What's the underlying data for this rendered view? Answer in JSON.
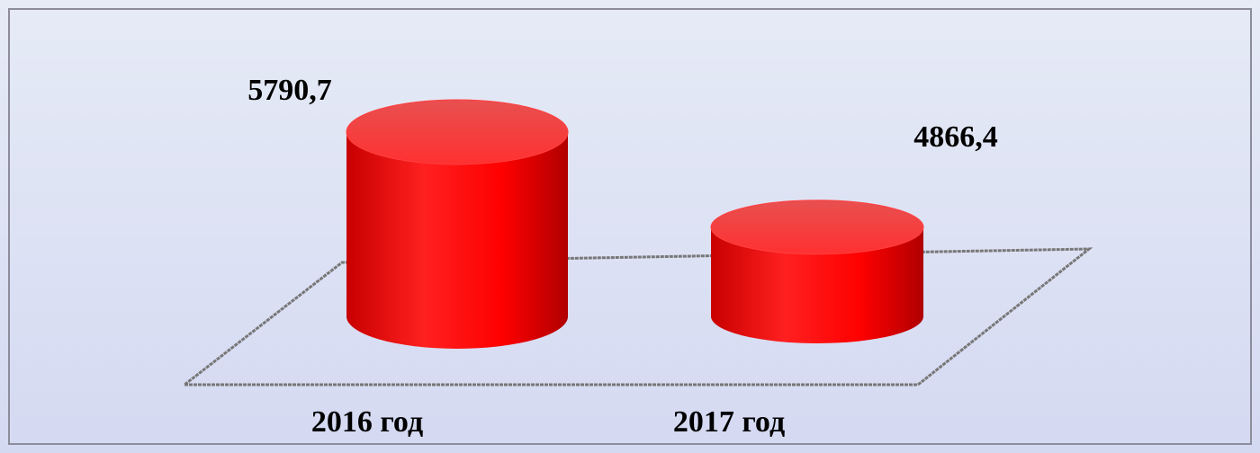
{
  "chart_data": {
    "type": "bar3d",
    "categories": [
      "2016 год",
      "2017 год"
    ],
    "values": [
      5790.7,
      4866.4
    ],
    "value_labels": [
      "5790,7",
      "4866,4"
    ],
    "color": "#ff0000",
    "ylim": [
      4000,
      6000
    ]
  }
}
